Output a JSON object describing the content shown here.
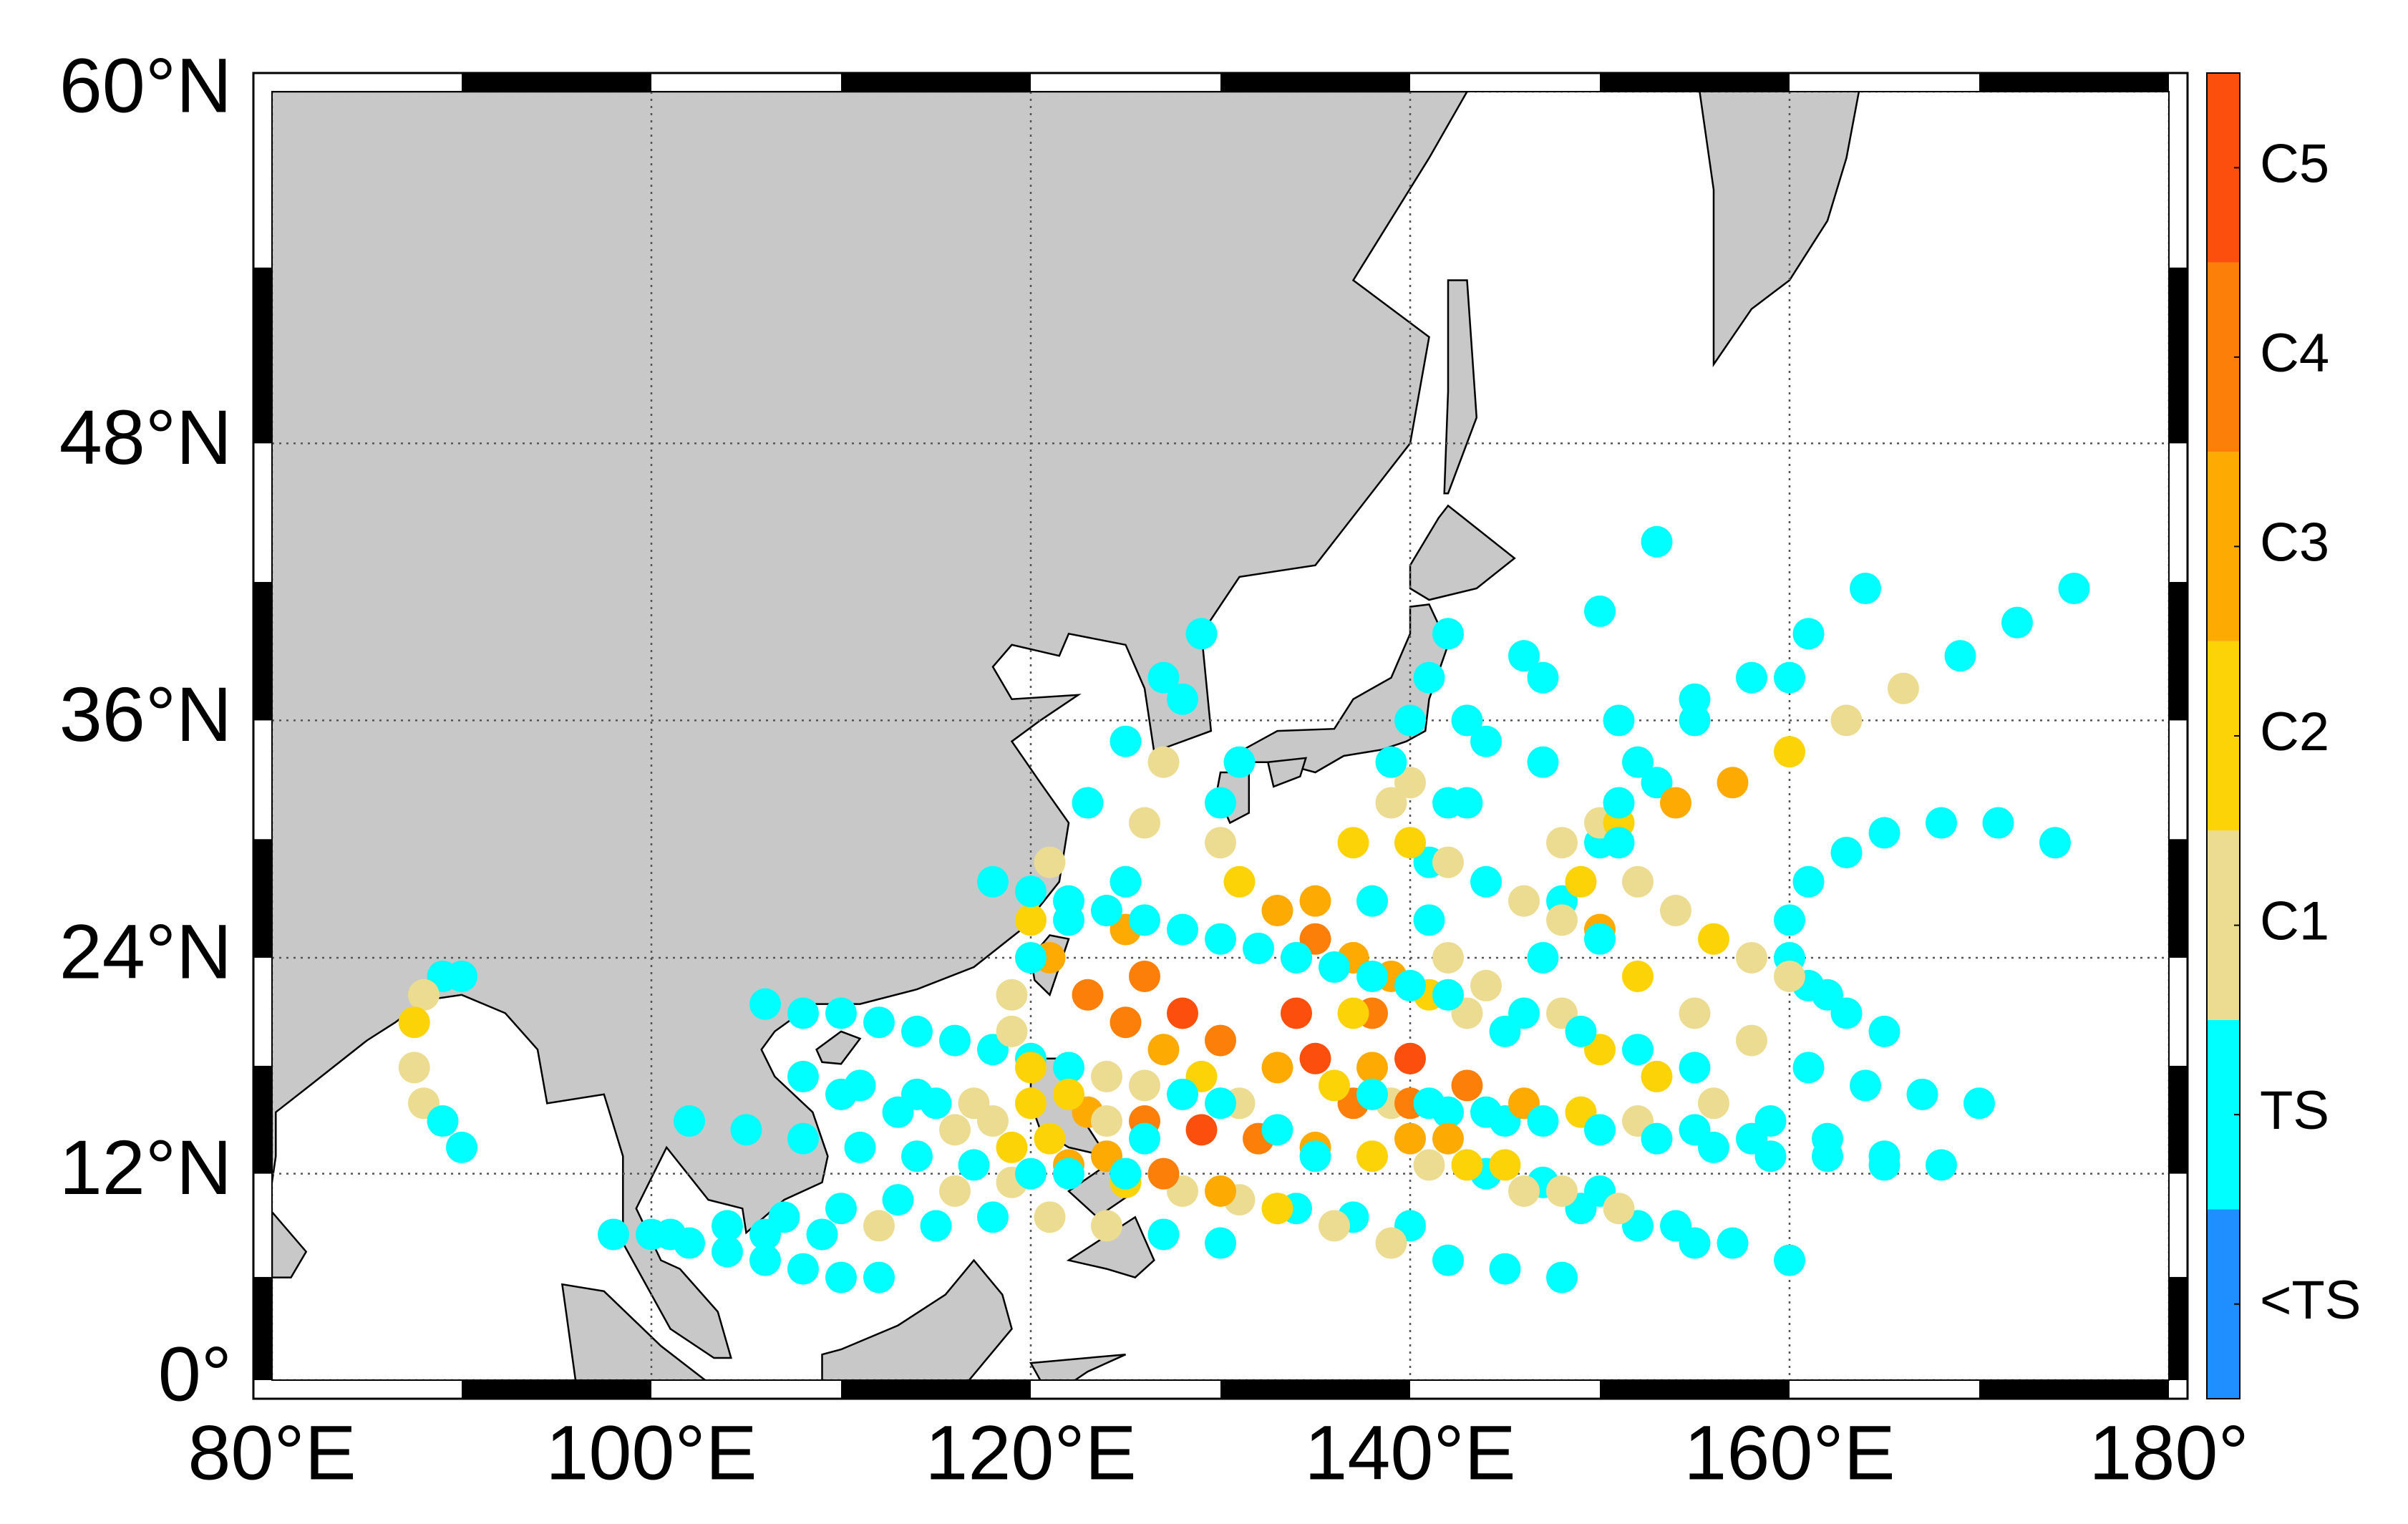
{
  "chart_data": {
    "type": "map",
    "projection": "mercator",
    "xlim": [
      80,
      180
    ],
    "ylim": [
      0,
      60
    ],
    "xticks": [
      {
        "value": 80,
        "label": "80°E"
      },
      {
        "value": 100,
        "label": "100°E"
      },
      {
        "value": 120,
        "label": "120°E"
      },
      {
        "value": 140,
        "label": "140°E"
      },
      {
        "value": 160,
        "label": "160°E"
      },
      {
        "value": 180,
        "label": "180°"
      }
    ],
    "yticks": [
      {
        "value": 0,
        "label": "0°"
      },
      {
        "value": 12,
        "label": "12°N"
      },
      {
        "value": 24,
        "label": "24°N"
      },
      {
        "value": 36,
        "label": "36°N"
      },
      {
        "value": 48,
        "label": "48°N"
      },
      {
        "value": 60,
        "label": "60°N"
      }
    ],
    "grid": true,
    "colorbar": {
      "labels": [
        "<TS",
        "TS",
        "C1",
        "C2",
        "C3",
        "C4",
        "C5"
      ],
      "colors": [
        "#1f8fff",
        "#00ffff",
        "#ebdc91",
        "#fbd307",
        "#fdaa02",
        "#fc7f09",
        "#fc4f0d"
      ]
    },
    "tracks": [
      {
        "lon": [
          150,
          147,
          144,
          141,
          138,
          135,
          132,
          129,
          126,
          123,
          120,
          117,
          114,
          111,
          108
        ],
        "lat": [
          11,
          11.5,
          12,
          12.5,
          13,
          13.5,
          14,
          14.5,
          15,
          15.5,
          16,
          16,
          16.5,
          17,
          17.5
        ],
        "cat": [
          "TS",
          "TS",
          "TS",
          "C1",
          "C2",
          "C3",
          "C4",
          "C5",
          "C4",
          "C3",
          "C2",
          "C1",
          "TS",
          "TS",
          "TS"
        ]
      },
      {
        "lon": [
          155,
          152,
          149,
          146,
          143,
          140,
          137,
          135,
          134,
          134,
          135,
          137,
          140,
          143,
          146
        ],
        "lat": [
          8,
          9,
          10,
          11,
          12.5,
          14,
          16,
          18.5,
          21,
          24,
          27,
          30,
          33,
          36,
          39
        ],
        "cat": [
          "TS",
          "TS",
          "TS",
          "C1",
          "C2",
          "C3",
          "C4",
          "C5",
          "C5",
          "C4",
          "C3",
          "C2",
          "C1",
          "TS",
          "TS"
        ]
      },
      {
        "lon": [
          145,
          142,
          139,
          136,
          133,
          130,
          128,
          126,
          125,
          125,
          126,
          127,
          128,
          129
        ],
        "lat": [
          15,
          15.5,
          16,
          17,
          18,
          19.5,
          21,
          23,
          25.5,
          28,
          31,
          34,
          37,
          40
        ],
        "cat": [
          "TS",
          "TS",
          "C1",
          "C2",
          "C3",
          "C4",
          "C5",
          "C4",
          "C3",
          "C2",
          "C1",
          "C1",
          "TS",
          "TS"
        ]
      },
      {
        "lon": [
          140,
          137,
          134,
          131,
          128,
          125,
          122,
          119,
          116,
          113,
          110
        ],
        "lat": [
          9,
          9.5,
          10,
          10.5,
          11,
          11.5,
          12.5,
          13.5,
          14.5,
          15.5,
          16.5
        ],
        "cat": [
          "TS",
          "TS",
          "TS",
          "C1",
          "C1",
          "C2",
          "C3",
          "C2",
          "C1",
          "TS",
          "TS"
        ]
      },
      {
        "lon": [
          165,
          162,
          159,
          156,
          153,
          150,
          148,
          147,
          148,
          150,
          153
        ],
        "lat": [
          13,
          14,
          15,
          16,
          17.5,
          19,
          21,
          24,
          27,
          30,
          33
        ],
        "cat": [
          "TS",
          "TS",
          "TS",
          "C1",
          "C2",
          "C2",
          "C1",
          "TS",
          "TS",
          "TS",
          "TS"
        ]
      },
      {
        "lon": [
          130,
          127,
          124,
          121,
          118,
          115,
          112,
          109,
          106
        ],
        "lat": [
          8,
          8.5,
          9,
          9.5,
          9.5,
          9,
          9,
          8.5,
          8.5
        ],
        "cat": [
          "TS",
          "TS",
          "C1",
          "C1",
          "TS",
          "TS",
          "C1",
          "TS",
          "TS"
        ]
      },
      {
        "lon": [
          158,
          155,
          152,
          149,
          146,
          143,
          140,
          138,
          137,
          138,
          140,
          143,
          147,
          151,
          155,
          160
        ],
        "lat": [
          14,
          14.5,
          15,
          15.5,
          16,
          17,
          18.5,
          21,
          24,
          27,
          30,
          32,
          34,
          36,
          37,
          38
        ],
        "cat": [
          "TS",
          "TS",
          "C1",
          "C2",
          "C3",
          "C4",
          "C5",
          "C4",
          "C3",
          "C2",
          "C1",
          "TS",
          "TS",
          "TS",
          "TS",
          "TS"
        ]
      },
      {
        "lon": [
          148,
          145,
          142,
          139,
          136,
          133,
          130,
          127,
          124,
          121,
          118,
          115
        ],
        "lat": [
          6,
          6.5,
          7,
          8,
          9,
          10,
          11,
          12,
          13,
          14,
          15,
          16
        ],
        "cat": [
          "TS",
          "TS",
          "TS",
          "C1",
          "C1",
          "C2",
          "C3",
          "C4",
          "C3",
          "C2",
          "C1",
          "TS"
        ]
      },
      {
        "lon": [
          135,
          133,
          131,
          129,
          127,
          125,
          123,
          121,
          120,
          121,
          123,
          125,
          127
        ],
        "lat": [
          13,
          14.5,
          16,
          17.5,
          19,
          20.5,
          22,
          24,
          26,
          29,
          32,
          35,
          38
        ],
        "cat": [
          "TS",
          "TS",
          "C1",
          "C2",
          "C3",
          "C4",
          "C4",
          "C3",
          "C2",
          "C1",
          "TS",
          "TS",
          "TS"
        ]
      },
      {
        "lon": [
          170,
          167,
          164,
          161,
          158,
          155,
          152,
          150,
          149,
          150,
          152,
          155,
          158,
          161,
          164
        ],
        "lat": [
          16,
          16.5,
          17,
          18,
          19.5,
          21,
          23,
          25.5,
          28,
          31,
          34,
          36,
          38,
          40,
          42
        ],
        "cat": [
          "TS",
          "TS",
          "TS",
          "TS",
          "C1",
          "C1",
          "C2",
          "C3",
          "C2",
          "C1",
          "TS",
          "TS",
          "TS",
          "TS",
          "TS"
        ]
      },
      {
        "lon": [
          148,
          151,
          154,
          157,
          160,
          163,
          166,
          169,
          172,
          175
        ],
        "lat": [
          30,
          31,
          32,
          33,
          34.5,
          36,
          37.5,
          39,
          40.5,
          42
        ],
        "cat": [
          "C1",
          "C2",
          "C3",
          "C3",
          "C2",
          "C1",
          "C1",
          "TS",
          "TS",
          "TS"
        ]
      },
      {
        "lon": [
          155,
          152,
          149,
          146,
          144,
          142,
          141,
          141,
          142,
          144,
          147,
          150,
          153
        ],
        "lat": [
          18,
          19,
          20,
          21,
          22.5,
          24,
          26,
          29,
          32,
          35,
          38,
          41,
          44
        ],
        "cat": [
          "TS",
          "TS",
          "TS",
          "TS",
          "C1",
          "C1",
          "TS",
          "TS",
          "TS",
          "TS",
          "TS",
          "TS",
          "TS"
        ]
      },
      {
        "lon": [
          125,
          122,
          119,
          116,
          113,
          110,
          107,
          104,
          101,
          98
        ],
        "lat": [
          12,
          12,
          11.5,
          11,
          10.5,
          10,
          9.5,
          9,
          8.5,
          8.5
        ],
        "cat": [
          "TS",
          "TS",
          "C1",
          "C1",
          "TS",
          "TS",
          "TS",
          "TS",
          "TS",
          "TS"
        ]
      },
      {
        "lon": [
          130,
          128,
          126,
          124,
          122,
          120,
          118,
          116,
          114,
          112,
          110,
          108,
          106
        ],
        "lat": [
          16,
          16.5,
          17,
          17.5,
          18,
          18.5,
          19,
          19.5,
          20,
          20.5,
          21,
          21,
          21.5
        ],
        "cat": [
          "TS",
          "TS",
          "C1",
          "C1",
          "TS",
          "TS",
          "TS",
          "TS",
          "TS",
          "TS",
          "TS",
          "TS",
          "TS"
        ]
      },
      {
        "lon": [
          90,
          89,
          88,
          87.5,
          87.5,
          88,
          89,
          90
        ],
        "lat": [
          23,
          23,
          22,
          20.5,
          18,
          16,
          15,
          13.5
        ],
        "cat": [
          "TS",
          "TS",
          "C1",
          "C2",
          "C1",
          "C1",
          "TS",
          "TS"
        ]
      },
      {
        "lon": [
          165,
          163,
          161,
          160,
          160,
          161,
          163,
          165,
          168,
          171,
          174
        ],
        "lat": [
          20,
          21,
          22.5,
          24,
          26,
          28,
          29.5,
          30.5,
          31,
          31,
          30
        ],
        "cat": [
          "TS",
          "TS",
          "TS",
          "TS",
          "TS",
          "TS",
          "TS",
          "TS",
          "TS",
          "TS",
          "TS"
        ]
      },
      {
        "lon": [
          160,
          157,
          154,
          151,
          148,
          145,
          142,
          140,
          138,
          137,
          137,
          138
        ],
        "lat": [
          7,
          8,
          9,
          10,
          11,
          12.5,
          14,
          16,
          18,
          21,
          24,
          27
        ],
        "cat": [
          "TS",
          "TS",
          "TS",
          "C1",
          "C1",
          "C2",
          "C3",
          "C4",
          "C3",
          "C2",
          "C1",
          "TS"
        ]
      },
      {
        "lon": [
          120,
          117,
          114,
          111,
          108,
          105,
          102
        ],
        "lat": [
          12,
          12.5,
          13,
          13.5,
          14,
          14.5,
          15
        ],
        "cat": [
          "TS",
          "TS",
          "TS",
          "TS",
          "TS",
          "TS",
          "TS"
        ]
      },
      {
        "lon": [
          145,
          143,
          141,
          139,
          137,
          135,
          133,
          131,
          130,
          130,
          131
        ],
        "lat": [
          20,
          21,
          22,
          23,
          24,
          25,
          26.5,
          28,
          30,
          32,
          34
        ],
        "cat": [
          "TS",
          "C1",
          "C2",
          "C3",
          "C3",
          "C4",
          "C3",
          "C2",
          "C1",
          "TS",
          "TS"
        ]
      },
      {
        "lon": [
          150,
          148,
          146,
          144,
          142,
          140,
          139,
          139,
          140,
          141,
          142
        ],
        "lat": [
          25,
          26,
          27,
          28,
          29,
          30,
          32,
          34,
          36,
          38,
          40
        ],
        "cat": [
          "TS",
          "C1",
          "C1",
          "TS",
          "C1",
          "C2",
          "C1",
          "TS",
          "TS",
          "TS",
          "TS"
        ]
      },
      {
        "lon": [
          168,
          165,
          162,
          159,
          156,
          153,
          150,
          147,
          144,
          141,
          138
        ],
        "lat": [
          12.5,
          12.5,
          13,
          13,
          13.5,
          14,
          14.5,
          15,
          15.5,
          16,
          16.5
        ],
        "cat": [
          "TS",
          "TS",
          "TS",
          "TS",
          "TS",
          "TS",
          "TS",
          "TS",
          "TS",
          "TS",
          "TS"
        ]
      },
      {
        "lon": [
          112,
          110,
          108,
          106,
          104,
          102,
          100
        ],
        "lat": [
          6,
          6,
          6.5,
          7,
          7.5,
          8,
          8.5
        ],
        "cat": [
          "TS",
          "TS",
          "TS",
          "TS",
          "TS",
          "TS",
          "TS"
        ]
      },
      {
        "lon": [
          126,
          124,
          122,
          120,
          119,
          119,
          120,
          122,
          125
        ],
        "lat": [
          14,
          15,
          16.5,
          18,
          20,
          22,
          24,
          26,
          28
        ],
        "cat": [
          "TS",
          "C1",
          "C2",
          "C2",
          "C1",
          "C1",
          "TS",
          "TS",
          "TS"
        ]
      },
      {
        "lon": [
          162,
          160,
          158,
          156,
          154,
          152,
          151,
          151
        ],
        "lat": [
          22,
          23,
          24,
          25,
          26.5,
          28,
          30,
          32
        ],
        "cat": [
          "TS",
          "C1",
          "C1",
          "C2",
          "C1",
          "C1",
          "TS",
          "TS"
        ]
      },
      {
        "lon": [
          142,
          140,
          138,
          136,
          134,
          132,
          130,
          128,
          126,
          124,
          122,
          120,
          118
        ],
        "lat": [
          22,
          22.5,
          23,
          23.5,
          24,
          24.5,
          25,
          25.5,
          26,
          26.5,
          27,
          27.5,
          28
        ],
        "cat": [
          "TS",
          "TS",
          "TS",
          "TS",
          "TS",
          "TS",
          "TS",
          "TS",
          "TS",
          "TS",
          "TS",
          "TS",
          "TS"
        ]
      }
    ]
  }
}
